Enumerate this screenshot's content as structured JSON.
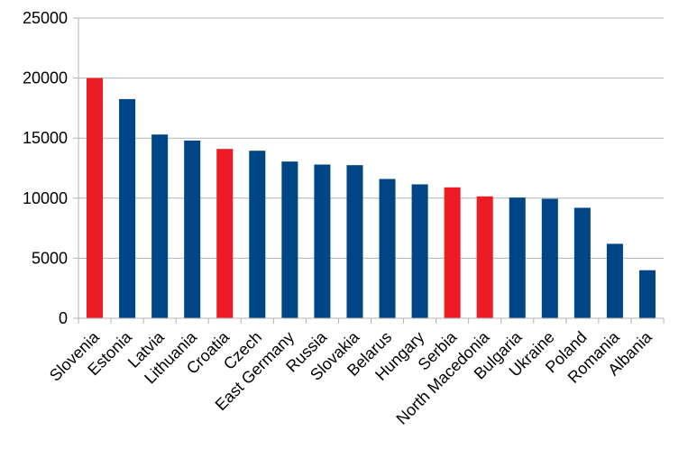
{
  "chart_data": {
    "type": "bar",
    "title": "",
    "xlabel": "",
    "ylabel": "",
    "ylim": [
      0,
      25000
    ],
    "yticks": [
      0,
      5000,
      10000,
      15000,
      20000,
      25000
    ],
    "grid": true,
    "legend": "none",
    "colors": {
      "default": "#004586",
      "highlight": "#ed1c24",
      "grid": "#b3b3b3",
      "axis": "#b3b3b3"
    },
    "categories": [
      "Slovenia",
      "Estonia",
      "Latvia",
      "Lithuania",
      "Croatia",
      "Czech",
      "East Germany",
      "Russia",
      "Slovakia",
      "Belarus",
      "Hungary",
      "Serbia",
      "North Macedonia",
      "Bulgaria",
      "Ukraine",
      "Poland",
      "Romania",
      "Albania"
    ],
    "values": [
      20000,
      18250,
      15300,
      14800,
      14100,
      13950,
      13050,
      12800,
      12750,
      11600,
      11150,
      10900,
      10150,
      10050,
      9950,
      9200,
      6200,
      4000
    ],
    "highlighted": [
      true,
      false,
      false,
      false,
      true,
      false,
      false,
      false,
      false,
      false,
      false,
      true,
      true,
      false,
      false,
      false,
      false,
      false
    ]
  }
}
